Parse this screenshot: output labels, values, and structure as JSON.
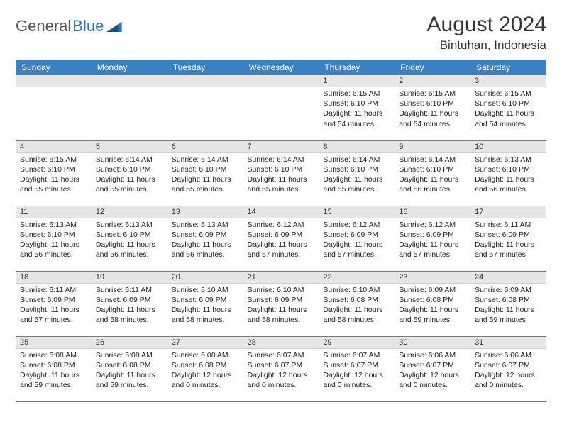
{
  "logo": {
    "text1": "General",
    "text2": "Blue"
  },
  "title": "August 2024",
  "location": "Bintuhan, Indonesia",
  "colors": {
    "header_bg": "#3a80c3",
    "header_text": "#ffffff",
    "daynum_bg": "#e6e6e6",
    "border": "#7a7a7a",
    "logo_gray": "#555555",
    "logo_blue": "#2e75b6"
  },
  "dow": [
    "Sunday",
    "Monday",
    "Tuesday",
    "Wednesday",
    "Thursday",
    "Friday",
    "Saturday"
  ],
  "weeks": [
    [
      {
        "n": "",
        "sr": "",
        "ss": "",
        "dl": ""
      },
      {
        "n": "",
        "sr": "",
        "ss": "",
        "dl": ""
      },
      {
        "n": "",
        "sr": "",
        "ss": "",
        "dl": ""
      },
      {
        "n": "",
        "sr": "",
        "ss": "",
        "dl": ""
      },
      {
        "n": "1",
        "sr": "Sunrise: 6:15 AM",
        "ss": "Sunset: 6:10 PM",
        "dl": "Daylight: 11 hours and 54 minutes."
      },
      {
        "n": "2",
        "sr": "Sunrise: 6:15 AM",
        "ss": "Sunset: 6:10 PM",
        "dl": "Daylight: 11 hours and 54 minutes."
      },
      {
        "n": "3",
        "sr": "Sunrise: 6:15 AM",
        "ss": "Sunset: 6:10 PM",
        "dl": "Daylight: 11 hours and 54 minutes."
      }
    ],
    [
      {
        "n": "4",
        "sr": "Sunrise: 6:15 AM",
        "ss": "Sunset: 6:10 PM",
        "dl": "Daylight: 11 hours and 55 minutes."
      },
      {
        "n": "5",
        "sr": "Sunrise: 6:14 AM",
        "ss": "Sunset: 6:10 PM",
        "dl": "Daylight: 11 hours and 55 minutes."
      },
      {
        "n": "6",
        "sr": "Sunrise: 6:14 AM",
        "ss": "Sunset: 6:10 PM",
        "dl": "Daylight: 11 hours and 55 minutes."
      },
      {
        "n": "7",
        "sr": "Sunrise: 6:14 AM",
        "ss": "Sunset: 6:10 PM",
        "dl": "Daylight: 11 hours and 55 minutes."
      },
      {
        "n": "8",
        "sr": "Sunrise: 6:14 AM",
        "ss": "Sunset: 6:10 PM",
        "dl": "Daylight: 11 hours and 55 minutes."
      },
      {
        "n": "9",
        "sr": "Sunrise: 6:14 AM",
        "ss": "Sunset: 6:10 PM",
        "dl": "Daylight: 11 hours and 56 minutes."
      },
      {
        "n": "10",
        "sr": "Sunrise: 6:13 AM",
        "ss": "Sunset: 6:10 PM",
        "dl": "Daylight: 11 hours and 56 minutes."
      }
    ],
    [
      {
        "n": "11",
        "sr": "Sunrise: 6:13 AM",
        "ss": "Sunset: 6:10 PM",
        "dl": "Daylight: 11 hours and 56 minutes."
      },
      {
        "n": "12",
        "sr": "Sunrise: 6:13 AM",
        "ss": "Sunset: 6:10 PM",
        "dl": "Daylight: 11 hours and 56 minutes."
      },
      {
        "n": "13",
        "sr": "Sunrise: 6:13 AM",
        "ss": "Sunset: 6:09 PM",
        "dl": "Daylight: 11 hours and 56 minutes."
      },
      {
        "n": "14",
        "sr": "Sunrise: 6:12 AM",
        "ss": "Sunset: 6:09 PM",
        "dl": "Daylight: 11 hours and 57 minutes."
      },
      {
        "n": "15",
        "sr": "Sunrise: 6:12 AM",
        "ss": "Sunset: 6:09 PM",
        "dl": "Daylight: 11 hours and 57 minutes."
      },
      {
        "n": "16",
        "sr": "Sunrise: 6:12 AM",
        "ss": "Sunset: 6:09 PM",
        "dl": "Daylight: 11 hours and 57 minutes."
      },
      {
        "n": "17",
        "sr": "Sunrise: 6:11 AM",
        "ss": "Sunset: 6:09 PM",
        "dl": "Daylight: 11 hours and 57 minutes."
      }
    ],
    [
      {
        "n": "18",
        "sr": "Sunrise: 6:11 AM",
        "ss": "Sunset: 6:09 PM",
        "dl": "Daylight: 11 hours and 57 minutes."
      },
      {
        "n": "19",
        "sr": "Sunrise: 6:11 AM",
        "ss": "Sunset: 6:09 PM",
        "dl": "Daylight: 11 hours and 58 minutes."
      },
      {
        "n": "20",
        "sr": "Sunrise: 6:10 AM",
        "ss": "Sunset: 6:09 PM",
        "dl": "Daylight: 11 hours and 58 minutes."
      },
      {
        "n": "21",
        "sr": "Sunrise: 6:10 AM",
        "ss": "Sunset: 6:09 PM",
        "dl": "Daylight: 11 hours and 58 minutes."
      },
      {
        "n": "22",
        "sr": "Sunrise: 6:10 AM",
        "ss": "Sunset: 6:08 PM",
        "dl": "Daylight: 11 hours and 58 minutes."
      },
      {
        "n": "23",
        "sr": "Sunrise: 6:09 AM",
        "ss": "Sunset: 6:08 PM",
        "dl": "Daylight: 11 hours and 59 minutes."
      },
      {
        "n": "24",
        "sr": "Sunrise: 6:09 AM",
        "ss": "Sunset: 6:08 PM",
        "dl": "Daylight: 11 hours and 59 minutes."
      }
    ],
    [
      {
        "n": "25",
        "sr": "Sunrise: 6:08 AM",
        "ss": "Sunset: 6:08 PM",
        "dl": "Daylight: 11 hours and 59 minutes."
      },
      {
        "n": "26",
        "sr": "Sunrise: 6:08 AM",
        "ss": "Sunset: 6:08 PM",
        "dl": "Daylight: 11 hours and 59 minutes."
      },
      {
        "n": "27",
        "sr": "Sunrise: 6:08 AM",
        "ss": "Sunset: 6:08 PM",
        "dl": "Daylight: 12 hours and 0 minutes."
      },
      {
        "n": "28",
        "sr": "Sunrise: 6:07 AM",
        "ss": "Sunset: 6:07 PM",
        "dl": "Daylight: 12 hours and 0 minutes."
      },
      {
        "n": "29",
        "sr": "Sunrise: 6:07 AM",
        "ss": "Sunset: 6:07 PM",
        "dl": "Daylight: 12 hours and 0 minutes."
      },
      {
        "n": "30",
        "sr": "Sunrise: 6:06 AM",
        "ss": "Sunset: 6:07 PM",
        "dl": "Daylight: 12 hours and 0 minutes."
      },
      {
        "n": "31",
        "sr": "Sunrise: 6:06 AM",
        "ss": "Sunset: 6:07 PM",
        "dl": "Daylight: 12 hours and 0 minutes."
      }
    ]
  ]
}
